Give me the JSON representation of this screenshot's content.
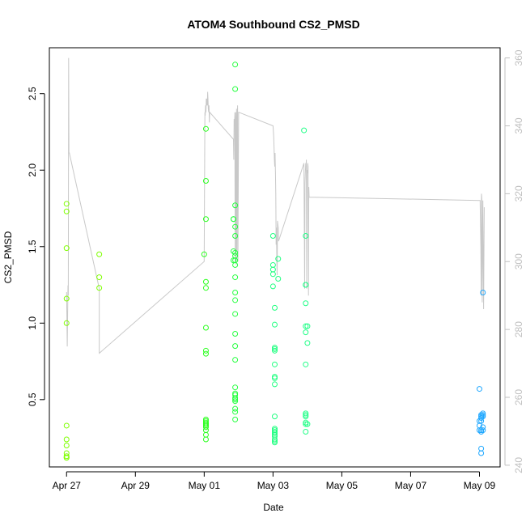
{
  "chart_data": {
    "type": "scatter",
    "title": "ATOM4 Southbound CS2_PMSD",
    "xlabel": "Date",
    "ylabel": "CS2_PMSD",
    "x_ticks": [
      {
        "label": "Apr 27",
        "day": 0
      },
      {
        "label": "Apr 29",
        "day": 2
      },
      {
        "label": "May 01",
        "day": 4
      },
      {
        "label": "May 03",
        "day": 6
      },
      {
        "label": "May 05",
        "day": 8
      },
      {
        "label": "May 07",
        "day": 10
      },
      {
        "label": "May 09",
        "day": 12
      }
    ],
    "xlim_days": [
      -0.5,
      12.6
    ],
    "y_ticks": [
      "0.5",
      "1.0",
      "1.5",
      "2.0",
      "2.5"
    ],
    "ylim": [
      0.06,
      2.8
    ],
    "y2_ticks": [
      "240",
      "260",
      "280",
      "300",
      "320",
      "340",
      "360"
    ],
    "y2lim": [
      239.5,
      363
    ],
    "line_color": "#c8c8c8",
    "secondary_axis_color": "#c0c0c0",
    "points_series": [
      {
        "color": "#7fff00",
        "x": [
          0.0,
          0.0,
          0.0,
          0.0,
          0.0,
          0.0,
          0.0,
          0.0,
          0.0,
          0.0,
          0.0,
          0.0,
          0.95,
          0.95,
          0.95
        ],
        "y": [
          1.78,
          1.73,
          1.49,
          1.16,
          1.0,
          0.33,
          0.24,
          0.2,
          0.15,
          0.13,
          0.12,
          0.12,
          1.45,
          1.3,
          1.23
        ]
      },
      {
        "color": "#2cff20",
        "x": [
          4.0,
          4.05,
          4.05,
          4.05,
          4.05,
          4.05,
          4.05,
          4.05,
          4.05,
          4.05,
          4.05,
          4.05,
          4.05,
          4.05,
          4.05,
          4.05,
          4.05,
          4.05,
          4.05,
          4.05
        ],
        "y": [
          1.45,
          2.27,
          1.93,
          1.68,
          1.27,
          1.23,
          0.97,
          0.82,
          0.8,
          0.37,
          0.35,
          0.34,
          0.33,
          0.32,
          0.27,
          0.24,
          0.33,
          0.34,
          0.36,
          0.3
        ]
      },
      {
        "color": "#26ff40",
        "x": [
          4.85,
          4.85,
          4.85,
          4.85,
          4.9,
          4.9,
          4.9,
          4.9,
          4.9,
          4.9,
          4.9,
          4.9,
          4.9,
          4.9,
          4.9,
          4.9,
          4.9,
          4.9,
          4.9,
          4.9,
          4.9,
          4.9,
          4.9,
          4.9,
          4.9,
          4.9,
          4.9,
          4.9,
          4.9,
          4.9
        ],
        "y": [
          1.68,
          1.68,
          1.47,
          1.41,
          2.69,
          2.53,
          1.77,
          1.63,
          1.57,
          1.46,
          1.44,
          1.41,
          1.38,
          1.3,
          1.2,
          1.15,
          1.06,
          0.93,
          0.85,
          0.76,
          0.58,
          0.54,
          0.53,
          0.51,
          0.5,
          0.49,
          0.44,
          0.42,
          0.37,
          0.51
        ]
      },
      {
        "color": "#20ff80",
        "x": [
          6.0,
          6.0,
          6.0,
          6.0,
          6.0,
          6.05,
          6.05,
          6.05,
          6.05,
          6.05,
          6.05,
          6.05,
          6.05,
          6.05,
          6.05,
          6.05,
          6.05,
          6.05,
          6.05,
          6.05,
          6.05,
          6.05,
          6.05,
          6.05,
          6.15,
          6.15
        ],
        "y": [
          1.57,
          1.38,
          1.35,
          1.32,
          1.24,
          1.1,
          0.99,
          0.84,
          0.83,
          0.82,
          0.73,
          0.65,
          0.64,
          0.6,
          0.39,
          0.31,
          0.3,
          0.29,
          0.28,
          0.26,
          0.24,
          0.23,
          0.22,
          0.27,
          1.42,
          1.29
        ]
      },
      {
        "color": "#22ff88",
        "x": [
          6.9,
          6.95,
          6.95,
          6.95,
          6.95,
          6.95,
          6.95,
          6.95,
          6.95,
          6.95,
          6.95,
          6.95,
          6.95,
          6.95,
          7.0,
          7.0,
          7.0
        ],
        "y": [
          2.26,
          1.57,
          1.25,
          1.25,
          1.13,
          0.98,
          0.94,
          0.73,
          0.41,
          0.4,
          0.39,
          0.35,
          0.34,
          0.29,
          0.98,
          0.87,
          0.34
        ]
      },
      {
        "color": "#20a8ff",
        "x": [
          12.0,
          12.0,
          12.0,
          12.0,
          12.05,
          12.05,
          12.05,
          12.05,
          12.05,
          12.05,
          12.05,
          12.05,
          12.1,
          12.1,
          12.1,
          12.1,
          12.1,
          12.1
        ],
        "y": [
          0.57,
          0.36,
          0.33,
          0.3,
          0.4,
          0.39,
          0.38,
          0.36,
          0.3,
          0.29,
          0.18,
          0.15,
          1.2,
          0.41,
          0.4,
          0.39,
          0.32,
          0.3
        ]
      }
    ],
    "line": {
      "x": [
        0.0,
        0.02,
        0.04,
        0.05,
        0.06,
        0.07,
        0.08,
        0.95,
        0.95,
        4.0,
        4.02,
        4.03,
        4.04,
        4.05,
        4.06,
        4.07,
        4.08,
        4.09,
        4.1,
        4.11,
        4.12,
        4.13,
        4.14,
        4.15,
        4.16,
        4.85,
        4.86,
        4.87,
        4.88,
        4.89,
        4.9,
        4.91,
        4.92,
        4.93,
        4.94,
        4.95,
        4.96,
        4.97,
        4.98,
        5.0,
        6.0,
        6.02,
        6.03,
        6.04,
        6.05,
        6.06,
        6.07,
        6.08,
        6.09,
        6.1,
        6.11,
        6.12,
        6.13,
        6.15,
        6.16,
        6.9,
        6.92,
        6.93,
        6.94,
        6.95,
        6.96,
        6.97,
        6.98,
        6.99,
        7.0,
        7.01,
        7.02,
        7.03,
        7.04,
        7.05,
        12.0,
        12.02,
        12.03,
        12.04,
        12.05,
        12.06,
        12.07,
        12.08,
        12.1,
        12.12,
        12.14
      ],
      "y": [
        291,
        275,
        293,
        290,
        360,
        332,
        332,
        292,
        273,
        300,
        344,
        343,
        346,
        344,
        348,
        346,
        348,
        346,
        350,
        348,
        345,
        344,
        346,
        341,
        344,
        336,
        330,
        342,
        340,
        344,
        300,
        340,
        344,
        299,
        345,
        303,
        341,
        346,
        300,
        344,
        340,
        337,
        334,
        330,
        328,
        332,
        326,
        320,
        305,
        310,
        300,
        296,
        312,
        310,
        306,
        329,
        292,
        323,
        326,
        329,
        328,
        330,
        292,
        327,
        326,
        329,
        328,
        290,
        322,
        319,
        318,
        318,
        310,
        304,
        290,
        320,
        318,
        288,
        318,
        286,
        316
      ]
    }
  }
}
